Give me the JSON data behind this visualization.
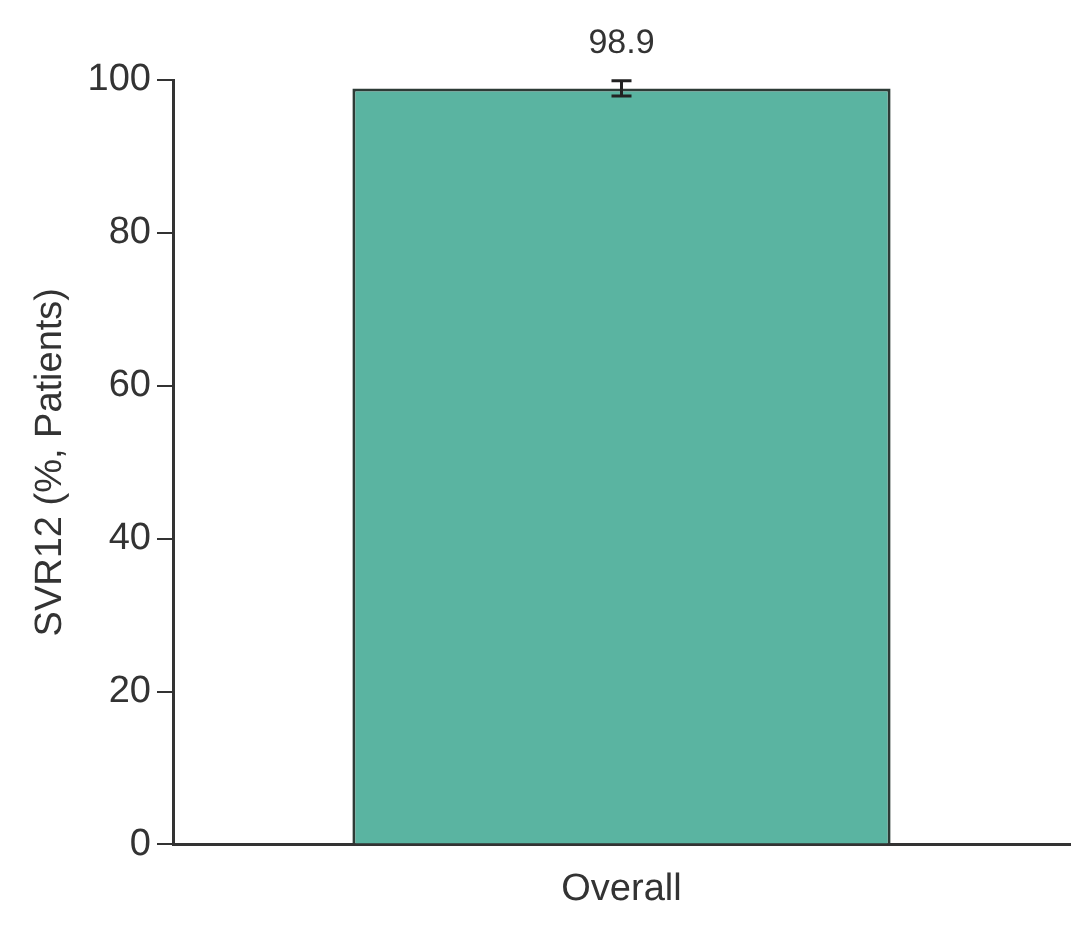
{
  "chart_data": {
    "type": "bar",
    "ylabel": "SVR12 (%, Patients)",
    "categories": [
      "Overall"
    ],
    "values": [
      98.9
    ],
    "color": "#5ab4a1",
    "errors": [
      1
    ],
    "ylim": [
      0,
      100
    ],
    "yticks": [
      0,
      20,
      40,
      60,
      80,
      100
    ],
    "grid": false,
    "legend": false,
    "data_labels": true
  }
}
